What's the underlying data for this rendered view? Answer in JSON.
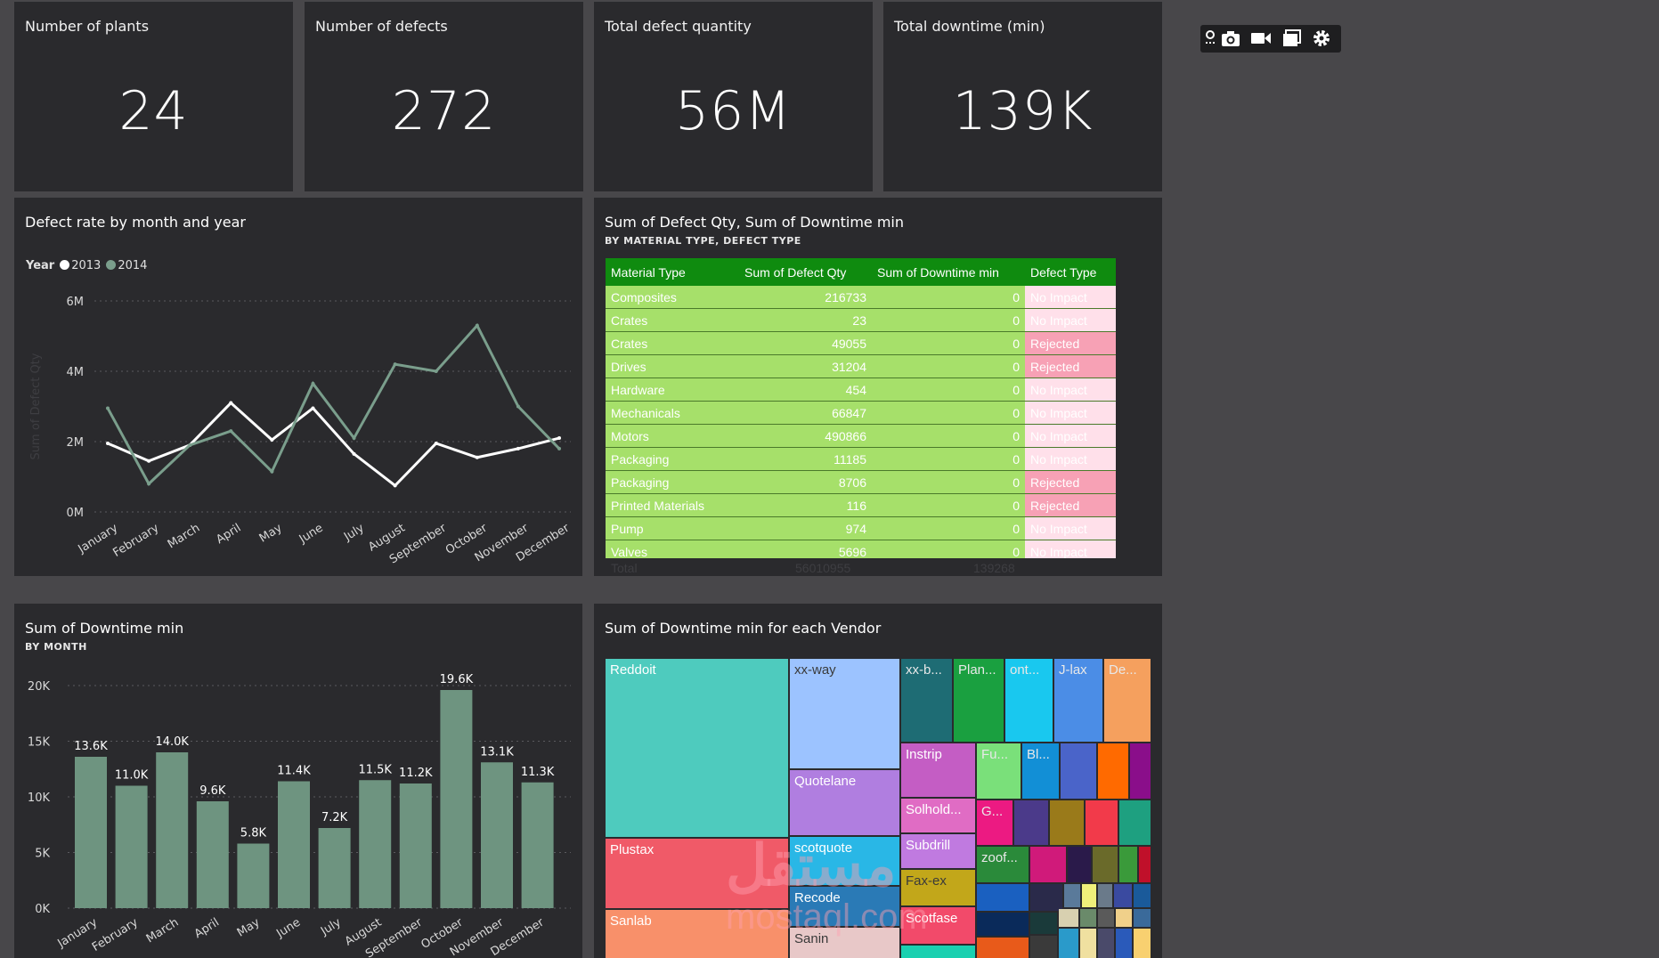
{
  "kpis": [
    {
      "title": "Number of plants",
      "value": "24"
    },
    {
      "title": "Number of defects",
      "value": "272"
    },
    {
      "title": "Total defect quantity",
      "value": "56M"
    },
    {
      "title": "Total downtime (min)",
      "value": "139K"
    }
  ],
  "line_chart": {
    "title": "Defect rate by month and year",
    "legend_label": "Year",
    "y_axis_label": "Sum of Defect Qty"
  },
  "table_visual": {
    "title": "Sum of Defect Qty, Sum of Downtime min",
    "subtitle": "BY MATERIAL TYPE, DEFECT TYPE",
    "columns": [
      "Material Type",
      "Sum of Defect Qty",
      "Sum of Downtime min",
      "Defect Type"
    ],
    "rows": [
      [
        "Composites",
        "216733",
        "0",
        "No Impact"
      ],
      [
        "Crates",
        "23",
        "0",
        "No Impact"
      ],
      [
        "Crates",
        "49055",
        "0",
        "Rejected"
      ],
      [
        "Drives",
        "31204",
        "0",
        "Rejected"
      ],
      [
        "Hardware",
        "454",
        "0",
        "No Impact"
      ],
      [
        "Mechanicals",
        "66847",
        "0",
        "No Impact"
      ],
      [
        "Motors",
        "490866",
        "0",
        "No Impact"
      ],
      [
        "Packaging",
        "11185",
        "0",
        "No Impact"
      ],
      [
        "Packaging",
        "8706",
        "0",
        "Rejected"
      ],
      [
        "Printed Materials",
        "116",
        "0",
        "Rejected"
      ],
      [
        "Pump",
        "974",
        "0",
        "No Impact"
      ],
      [
        "Valves",
        "5696",
        "0",
        "No Impact"
      ]
    ],
    "total": [
      "Total",
      "56010955",
      "139268",
      ""
    ]
  },
  "bar_chart": {
    "title": "Sum of Downtime min",
    "subtitle": "BY MONTH"
  },
  "treemap": {
    "title": "Sum of Downtime min for each Vendor",
    "vendors": [
      "Reddoit",
      "xx-way",
      "xx-b...",
      "Plan...",
      "ont...",
      "J-lax",
      "De...",
      "Quotelane",
      "Instrip",
      "Fu...",
      "Bl...",
      "Solhold...",
      "Plustax",
      "scotquote",
      "Subdrill",
      "zoof...",
      "Fax-ex",
      "Recode",
      "Sanlab",
      "Scotfase",
      "Sanin",
      "G..."
    ]
  },
  "watermark": {
    "arabic": "مستقل",
    "latin": "mostaql.com"
  },
  "chart_data": [
    {
      "type": "line",
      "title": "Defect rate by month and year",
      "xlabel": "",
      "ylabel": "Sum of Defect Qty",
      "x": [
        "January",
        "February",
        "March",
        "April",
        "May",
        "June",
        "July",
        "August",
        "September",
        "October",
        "November",
        "December"
      ],
      "y_ticks": [
        "0M",
        "2M",
        "4M",
        "6M"
      ],
      "ylim": [
        0,
        6000000
      ],
      "legend_title": "Year",
      "series": [
        {
          "name": "2013",
          "color": "#ffffff",
          "values": [
            1950000,
            1450000,
            1900000,
            3100000,
            2050000,
            2950000,
            1650000,
            750000,
            1950000,
            1550000,
            1800000,
            2100000
          ]
        },
        {
          "name": "2014",
          "color": "#7a9e8c",
          "values": [
            2950000,
            800000,
            1900000,
            2300000,
            1150000,
            3650000,
            2100000,
            4200000,
            4000000,
            5300000,
            3000000,
            1800000
          ]
        }
      ]
    },
    {
      "type": "bar",
      "title": "Sum of Downtime min",
      "subtitle": "BY MONTH",
      "categories": [
        "January",
        "February",
        "March",
        "April",
        "May",
        "June",
        "July",
        "August",
        "September",
        "October",
        "November",
        "December"
      ],
      "values": [
        13600,
        11000,
        14000,
        9600,
        5800,
        11400,
        7200,
        11500,
        11200,
        19600,
        13100,
        11300
      ],
      "labels": [
        "13.6K",
        "11.0K",
        "14.0K",
        "9.6K",
        "5.8K",
        "11.4K",
        "7.2K",
        "11.5K",
        "11.2K",
        "19.6K",
        "13.1K",
        "11.3K"
      ],
      "y_ticks": [
        "0K",
        "5K",
        "10K",
        "15K",
        "20K"
      ],
      "ylim": [
        0,
        20000
      ],
      "color": "#6e9480"
    }
  ]
}
